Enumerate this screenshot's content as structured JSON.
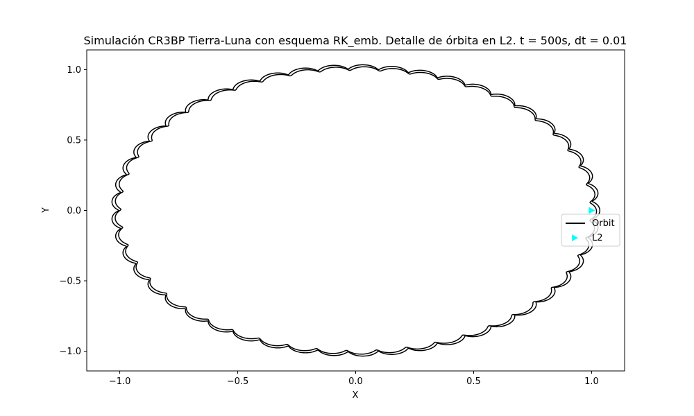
{
  "chart_data": {
    "type": "line",
    "title": "Simulación CR3BP Tierra-Luna con esquema RK_emb. Detalle de órbita en L2. t = 500s, dt = 0.01",
    "xlabel": "X",
    "ylabel": "Y",
    "xlim": [
      -1.14,
      1.14
    ],
    "ylim": [
      -1.14,
      1.14
    ],
    "xticks": [
      -1.0,
      -0.5,
      0.0,
      0.5,
      1.0
    ],
    "xtick_labels": [
      "−1.0",
      "−0.5",
      "0.0",
      "0.5",
      "1.0"
    ],
    "yticks": [
      -1.0,
      -0.5,
      0.0,
      0.5,
      1.0
    ],
    "ytick_labels": [
      "−1.0",
      "−0.5",
      "0.0",
      "0.5",
      "1.0"
    ],
    "grid": false,
    "legend_position": "center-right",
    "series": [
      {
        "name": "Orbit",
        "kind": "line",
        "color": "#000000",
        "shape": "near-circular orbit of radius about 1.02, traced about twice, with small periodic cusps (loops) along the path",
        "approx_radius": 1.02,
        "cusps_per_revolution": 50
      },
      {
        "name": "L2",
        "kind": "marker",
        "marker": "triangle-right",
        "color": "#00ffff",
        "x": 1.0,
        "y": 0.0
      }
    ]
  }
}
